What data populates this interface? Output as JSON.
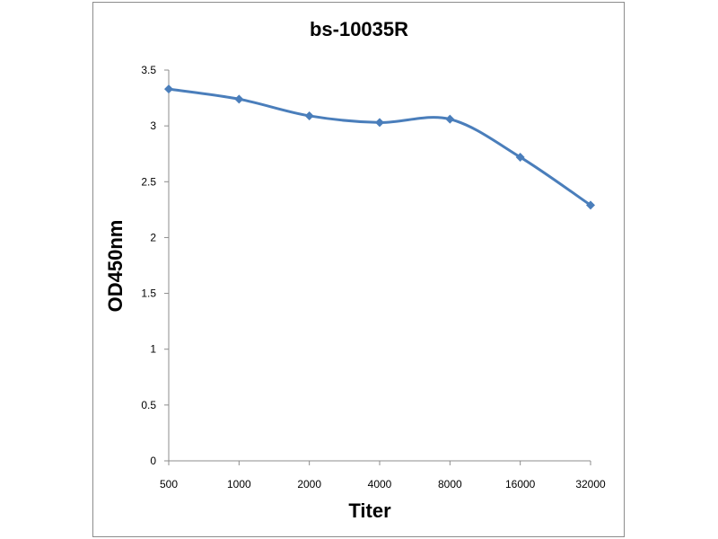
{
  "chart_data": {
    "type": "line",
    "title": "bs-10035R",
    "xlabel": "Titer",
    "ylabel": "OD450nm",
    "categories": [
      "500",
      "1000",
      "2000",
      "4000",
      "8000",
      "16000",
      "32000"
    ],
    "series": [
      {
        "values": [
          3.33,
          3.24,
          3.09,
          3.03,
          3.06,
          2.72,
          2.29
        ]
      }
    ],
    "ylim": [
      0,
      3.5
    ],
    "yticks": [
      "0",
      "0.5",
      "1",
      "1.5",
      "2",
      "2.5",
      "3",
      "3.5"
    ],
    "grid": false,
    "legend": "none",
    "line_color": "#4a7ebb",
    "smooth": true,
    "marker": "diamond"
  }
}
